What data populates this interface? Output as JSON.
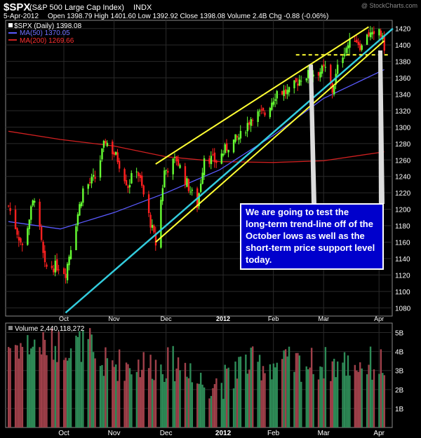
{
  "header": {
    "symbol": "$SPX",
    "name": "(S&P 500 Large Cap Index)",
    "exchange": "INDX",
    "watermark": "@ StockCharts.com",
    "date": "5-Apr-2012",
    "quote": "Open 1398.79   High 1401.60   Low 1392.92   Close 1398.08   Volume 2.4B   Chg -0.88 (-0.06%)"
  },
  "legend": [
    {
      "text": "$SPX (Daily) 1398.08",
      "color": "#ffffff"
    },
    {
      "text": "MA(50) 1370.05",
      "color": "#7070ff"
    },
    {
      "text": "MA(200) 1269.66",
      "color": "#ff3030"
    }
  ],
  "volume_label": "Volume 2,440,118,272",
  "annotation": [
    "We are going to test the",
    "long-term trend-line off of the",
    "October lows as well as the",
    "short-term price support level",
    "today."
  ],
  "colors": {
    "up": "#66ff33",
    "down": "#ff2020",
    "ma50": "#5a5aff",
    "ma200": "#d02020",
    "trend_yellow": "#ffff33",
    "trend_cyan": "#33ccdd",
    "grid": "#2a2a2a",
    "vol_up": "#2e8b57",
    "vol_down": "#a0404a",
    "annotation_bg": "#0000cc"
  },
  "chart_data": {
    "type": "candlestick",
    "title": "$SPX (S&P 500 Large Cap Index)",
    "y_ticks": [
      1080,
      1100,
      1120,
      1140,
      1160,
      1180,
      1200,
      1220,
      1240,
      1260,
      1280,
      1300,
      1320,
      1340,
      1360,
      1380,
      1400,
      1420
    ],
    "ylim": [
      1070,
      1430
    ],
    "x_labels": [
      "Oct",
      "Nov",
      "Dec",
      "2012",
      "Feb",
      "Mar",
      "Apr"
    ],
    "vol_ticks": [
      "5B",
      "4B",
      "3B",
      "2B",
      "1B"
    ],
    "vol_ylim": [
      0,
      5.5
    ],
    "close_path": [
      [
        "2011-09-01",
        1204
      ],
      [
        "2011-09-09",
        1154
      ],
      [
        "2011-09-16",
        1216
      ],
      [
        "2011-09-22",
        1129
      ],
      [
        "2011-09-30",
        1131
      ],
      [
        "2011-10-04",
        1123
      ],
      [
        "2011-10-07",
        1155
      ],
      [
        "2011-10-14",
        1224
      ],
      [
        "2011-10-21",
        1238
      ],
      [
        "2011-10-27",
        1284
      ],
      [
        "2011-11-03",
        1261
      ],
      [
        "2011-11-09",
        1229
      ],
      [
        "2011-11-14",
        1251
      ],
      [
        "2011-11-21",
        1192
      ],
      [
        "2011-11-25",
        1158
      ],
      [
        "2011-11-30",
        1246
      ],
      [
        "2011-12-07",
        1261
      ],
      [
        "2011-12-12",
        1236
      ],
      [
        "2011-12-19",
        1205
      ],
      [
        "2011-12-23",
        1265
      ],
      [
        "2011-12-30",
        1258
      ],
      [
        "2012-01-06",
        1278
      ],
      [
        "2012-01-13",
        1289
      ],
      [
        "2012-01-20",
        1315
      ],
      [
        "2012-01-27",
        1316
      ],
      [
        "2012-02-03",
        1344
      ],
      [
        "2012-02-10",
        1342
      ],
      [
        "2012-02-17",
        1361
      ],
      [
        "2012-02-24",
        1366
      ],
      [
        "2012-03-02",
        1370
      ],
      [
        "2012-03-06",
        1344
      ],
      [
        "2012-03-09",
        1371
      ],
      [
        "2012-03-13",
        1395
      ],
      [
        "2012-03-19",
        1409
      ],
      [
        "2012-03-23",
        1397
      ],
      [
        "2012-03-26",
        1416
      ],
      [
        "2012-03-30",
        1408
      ],
      [
        "2012-04-02",
        1419
      ],
      [
        "2012-04-05",
        1398
      ]
    ],
    "ma50_path": [
      [
        "2011-09-01",
        1185
      ],
      [
        "2011-10-01",
        1176
      ],
      [
        "2011-11-01",
        1196
      ],
      [
        "2011-12-01",
        1220
      ],
      [
        "2012-01-01",
        1248
      ],
      [
        "2012-02-01",
        1290
      ],
      [
        "2012-03-01",
        1335
      ],
      [
        "2012-04-05",
        1370
      ]
    ],
    "ma200_path": [
      [
        "2011-09-01",
        1295
      ],
      [
        "2011-10-01",
        1285
      ],
      [
        "2011-11-01",
        1277
      ],
      [
        "2011-12-01",
        1264
      ],
      [
        "2012-01-01",
        1258
      ],
      [
        "2012-02-01",
        1257
      ],
      [
        "2012-03-01",
        1259
      ],
      [
        "2012-04-05",
        1270
      ]
    ],
    "trendlines": [
      {
        "name": "upper channel",
        "color": "yellow",
        "from": [
          "2011-11-25",
          1255
        ],
        "to": [
          "2012-03-27",
          1422
        ]
      },
      {
        "name": "lower channel",
        "color": "yellow",
        "from": [
          "2011-11-25",
          1160
        ],
        "to": [
          "2012-04-05",
          1405
        ]
      },
      {
        "name": "long-term trend-line",
        "color": "cyan",
        "from": [
          "2011-10-04",
          1074
        ],
        "to": [
          "2012-04-10",
          1420
        ]
      },
      {
        "name": "short-term support",
        "color": "yellow",
        "dashed": true,
        "from": [
          "2012-02-14",
          1388
        ],
        "to": [
          "2012-04-08",
          1388
        ]
      }
    ]
  }
}
